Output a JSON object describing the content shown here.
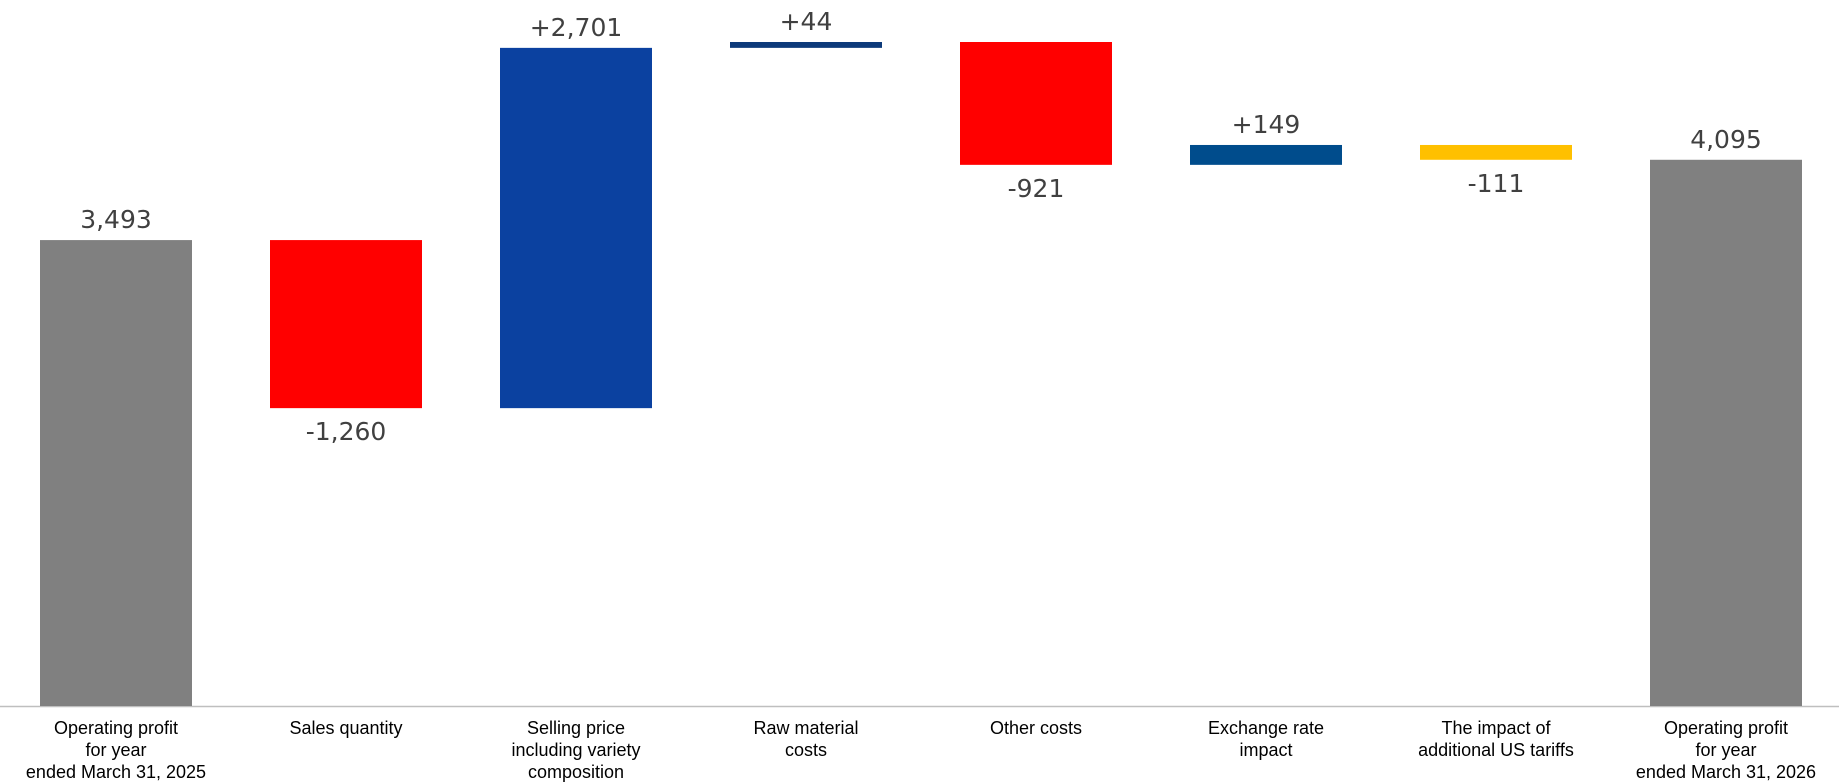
{
  "chart_data": {
    "type": "waterfall",
    "categories": [
      "Operating profit\nfor year\nended March 31, 2025",
      "Sales quantity",
      "Selling price\nincluding variety\ncomposition",
      "Raw material\ncosts",
      "Other costs",
      "Exchange rate\nimpact",
      "The impact of\nadditional US tariffs",
      "Operating profit\nfor year\nended March 31, 2026"
    ],
    "values": [
      3493,
      -1260,
      2701,
      44,
      -921,
      149,
      -111,
      4095
    ],
    "value_labels": [
      "3,493",
      "-1,260",
      "+2,701",
      "+44",
      "-921",
      "+149",
      "-111",
      "4,095"
    ],
    "totals": [
      true,
      false,
      false,
      false,
      false,
      false,
      false,
      true
    ],
    "colors": [
      "#808080",
      "#ff0000",
      "#0b41a0",
      "#0d3a7a",
      "#ff0000",
      "#004c8c",
      "#ffc000",
      "#808080"
    ]
  }
}
